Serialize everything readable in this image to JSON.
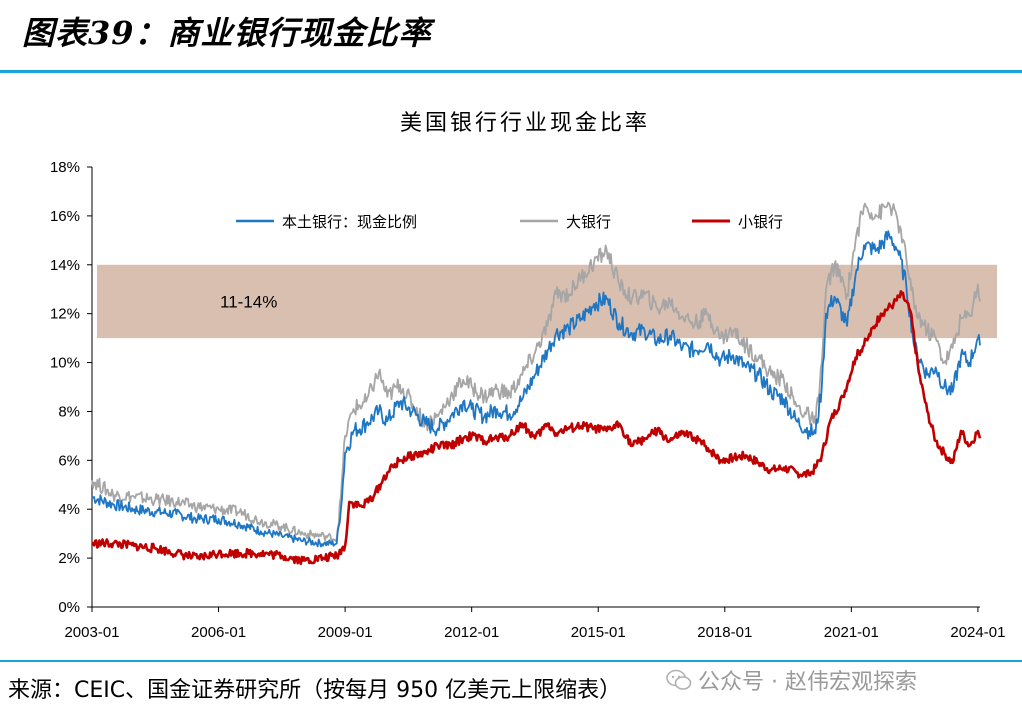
{
  "header": {
    "title": "图表39：商业银行现金比率"
  },
  "footer": {
    "source": "来源：CEIC、国金证券研究所（按每月 950 亿美元上限缩表）",
    "watermark": "公众号 · 赵伟宏观探索"
  },
  "colors": {
    "accent": "#19a3d6",
    "domestic": "#1f77c4",
    "large": "#a6a6a6",
    "small": "#c00000",
    "band": "#d9bfb0"
  },
  "chart_data": {
    "type": "line",
    "title": "美国银行行业现金比率",
    "band": {
      "from": 11,
      "to": 14,
      "label": "11-14%"
    },
    "ylim": [
      0,
      18
    ],
    "yticks": [
      "0%",
      "2%",
      "4%",
      "6%",
      "8%",
      "10%",
      "12%",
      "14%",
      "16%",
      "18%"
    ],
    "xlim": [
      2003.0,
      2024.05
    ],
    "xticks": [
      "2003-01",
      "2006-01",
      "2009-01",
      "2012-01",
      "2015-01",
      "2018-01",
      "2021-01",
      "2024-01"
    ],
    "grid": false,
    "legend": "top",
    "series": [
      {
        "name": "本土银行：现金比例",
        "color": "#1f77c4",
        "points": [
          [
            2003.0,
            4.5
          ],
          [
            2003.5,
            4.2
          ],
          [
            2004.0,
            4.0
          ],
          [
            2004.5,
            3.9
          ],
          [
            2005.0,
            3.8
          ],
          [
            2005.5,
            3.6
          ],
          [
            2006.0,
            3.6
          ],
          [
            2006.5,
            3.4
          ],
          [
            2007.0,
            3.1
          ],
          [
            2007.5,
            2.9
          ],
          [
            2008.0,
            2.7
          ],
          [
            2008.5,
            2.6
          ],
          [
            2008.8,
            2.6
          ],
          [
            2008.9,
            4.0
          ],
          [
            2009.0,
            6.3
          ],
          [
            2009.2,
            7.2
          ],
          [
            2009.5,
            7.5
          ],
          [
            2009.8,
            8.0
          ],
          [
            2010.0,
            7.6
          ],
          [
            2010.3,
            8.4
          ],
          [
            2010.6,
            8.0
          ],
          [
            2010.9,
            7.5
          ],
          [
            2011.2,
            7.3
          ],
          [
            2011.5,
            7.8
          ],
          [
            2011.8,
            8.4
          ],
          [
            2012.0,
            8.1
          ],
          [
            2012.3,
            7.8
          ],
          [
            2012.6,
            8.1
          ],
          [
            2012.9,
            7.9
          ],
          [
            2013.2,
            8.5
          ],
          [
            2013.5,
            9.5
          ],
          [
            2013.8,
            10.5
          ],
          [
            2014.0,
            11.2
          ],
          [
            2014.3,
            11.4
          ],
          [
            2014.6,
            11.8
          ],
          [
            2014.9,
            12.4
          ],
          [
            2015.2,
            12.6
          ],
          [
            2015.5,
            11.6
          ],
          [
            2015.8,
            11.2
          ],
          [
            2016.1,
            11.3
          ],
          [
            2016.4,
            10.9
          ],
          [
            2016.7,
            11.1
          ],
          [
            2017.0,
            10.6
          ],
          [
            2017.3,
            10.5
          ],
          [
            2017.6,
            10.8
          ],
          [
            2017.9,
            10.1
          ],
          [
            2018.2,
            10.3
          ],
          [
            2018.5,
            9.8
          ],
          [
            2018.8,
            9.5
          ],
          [
            2019.1,
            8.8
          ],
          [
            2019.4,
            8.5
          ],
          [
            2019.7,
            7.6
          ],
          [
            2020.0,
            7.2
          ],
          [
            2020.15,
            7.1
          ],
          [
            2020.3,
            9.0
          ],
          [
            2020.4,
            12.0
          ],
          [
            2020.6,
            12.7
          ],
          [
            2020.9,
            11.5
          ],
          [
            2021.1,
            13.6
          ],
          [
            2021.3,
            14.8
          ],
          [
            2021.6,
            14.6
          ],
          [
            2021.9,
            15.2
          ],
          [
            2022.1,
            14.6
          ],
          [
            2022.3,
            13.2
          ],
          [
            2022.5,
            10.6
          ],
          [
            2022.8,
            9.5
          ],
          [
            2023.0,
            9.8
          ],
          [
            2023.2,
            9.0
          ],
          [
            2023.4,
            8.8
          ],
          [
            2023.6,
            10.3
          ],
          [
            2023.8,
            10.0
          ],
          [
            2024.0,
            11.0
          ],
          [
            2024.05,
            10.7
          ]
        ]
      },
      {
        "name": "大银行",
        "color": "#a6a6a6",
        "points": [
          [
            2003.0,
            5.2
          ],
          [
            2003.5,
            4.6
          ],
          [
            2004.0,
            4.5
          ],
          [
            2004.5,
            4.4
          ],
          [
            2005.0,
            4.3
          ],
          [
            2005.5,
            4.1
          ],
          [
            2006.0,
            4.0
          ],
          [
            2006.5,
            3.9
          ],
          [
            2007.0,
            3.5
          ],
          [
            2007.5,
            3.3
          ],
          [
            2008.0,
            3.0
          ],
          [
            2008.5,
            2.9
          ],
          [
            2008.8,
            2.8
          ],
          [
            2008.9,
            4.5
          ],
          [
            2009.0,
            7.0
          ],
          [
            2009.2,
            8.1
          ],
          [
            2009.5,
            8.4
          ],
          [
            2009.8,
            9.6
          ],
          [
            2010.0,
            8.6
          ],
          [
            2010.3,
            9.1
          ],
          [
            2010.6,
            8.3
          ],
          [
            2010.9,
            7.5
          ],
          [
            2011.2,
            7.8
          ],
          [
            2011.5,
            8.6
          ],
          [
            2011.8,
            9.3
          ],
          [
            2012.0,
            9.0
          ],
          [
            2012.3,
            8.6
          ],
          [
            2012.6,
            8.9
          ],
          [
            2012.9,
            8.7
          ],
          [
            2013.2,
            9.5
          ],
          [
            2013.5,
            10.4
          ],
          [
            2013.8,
            11.5
          ],
          [
            2014.0,
            12.8
          ],
          [
            2014.3,
            12.8
          ],
          [
            2014.6,
            13.5
          ],
          [
            2014.9,
            14.1
          ],
          [
            2015.2,
            14.6
          ],
          [
            2015.5,
            13.2
          ],
          [
            2015.8,
            12.6
          ],
          [
            2016.1,
            12.8
          ],
          [
            2016.4,
            12.2
          ],
          [
            2016.7,
            12.5
          ],
          [
            2017.0,
            11.9
          ],
          [
            2017.3,
            11.6
          ],
          [
            2017.6,
            12.0
          ],
          [
            2017.9,
            11.0
          ],
          [
            2018.2,
            11.3
          ],
          [
            2018.5,
            10.7
          ],
          [
            2018.8,
            10.2
          ],
          [
            2019.1,
            9.5
          ],
          [
            2019.4,
            9.3
          ],
          [
            2019.7,
            8.2
          ],
          [
            2020.0,
            7.8
          ],
          [
            2020.15,
            7.5
          ],
          [
            2020.3,
            10.0
          ],
          [
            2020.4,
            13.0
          ],
          [
            2020.6,
            14.0
          ],
          [
            2020.9,
            12.8
          ],
          [
            2021.1,
            15.0
          ],
          [
            2021.3,
            16.4
          ],
          [
            2021.6,
            16.0
          ],
          [
            2021.9,
            16.5
          ],
          [
            2022.1,
            15.8
          ],
          [
            2022.3,
            14.3
          ],
          [
            2022.5,
            12.2
          ],
          [
            2022.8,
            11.3
          ],
          [
            2023.0,
            11.0
          ],
          [
            2023.2,
            10.0
          ],
          [
            2023.4,
            10.6
          ],
          [
            2023.6,
            11.8
          ],
          [
            2023.8,
            11.9
          ],
          [
            2024.0,
            13.2
          ],
          [
            2024.05,
            12.5
          ]
        ]
      },
      {
        "name": "小银行",
        "color": "#c00000",
        "points": [
          [
            2003.0,
            2.6
          ],
          [
            2003.5,
            2.6
          ],
          [
            2004.0,
            2.5
          ],
          [
            2004.5,
            2.4
          ],
          [
            2005.0,
            2.2
          ],
          [
            2005.5,
            2.0
          ],
          [
            2006.0,
            2.2
          ],
          [
            2006.5,
            2.2
          ],
          [
            2007.0,
            2.2
          ],
          [
            2007.5,
            2.1
          ],
          [
            2008.0,
            1.9
          ],
          [
            2008.5,
            2.0
          ],
          [
            2008.8,
            2.1
          ],
          [
            2009.0,
            2.5
          ],
          [
            2009.1,
            4.3
          ],
          [
            2009.4,
            4.1
          ],
          [
            2009.7,
            4.6
          ],
          [
            2010.0,
            5.5
          ],
          [
            2010.3,
            6.0
          ],
          [
            2010.6,
            6.2
          ],
          [
            2010.9,
            6.3
          ],
          [
            2011.2,
            6.6
          ],
          [
            2011.5,
            6.6
          ],
          [
            2011.8,
            6.9
          ],
          [
            2012.0,
            7.0
          ],
          [
            2012.3,
            6.8
          ],
          [
            2012.6,
            6.9
          ],
          [
            2012.9,
            7.0
          ],
          [
            2013.2,
            7.5
          ],
          [
            2013.5,
            6.9
          ],
          [
            2013.8,
            7.5
          ],
          [
            2014.0,
            7.1
          ],
          [
            2014.3,
            7.3
          ],
          [
            2014.6,
            7.4
          ],
          [
            2014.9,
            7.3
          ],
          [
            2015.2,
            7.2
          ],
          [
            2015.5,
            7.5
          ],
          [
            2015.8,
            6.6
          ],
          [
            2016.1,
            6.9
          ],
          [
            2016.4,
            7.2
          ],
          [
            2016.7,
            6.8
          ],
          [
            2017.0,
            7.1
          ],
          [
            2017.3,
            6.9
          ],
          [
            2017.6,
            6.5
          ],
          [
            2017.9,
            6.0
          ],
          [
            2018.2,
            6.1
          ],
          [
            2018.5,
            6.2
          ],
          [
            2018.8,
            5.9
          ],
          [
            2019.1,
            5.6
          ],
          [
            2019.4,
            5.7
          ],
          [
            2019.7,
            5.5
          ],
          [
            2020.0,
            5.4
          ],
          [
            2020.15,
            5.7
          ],
          [
            2020.3,
            6.2
          ],
          [
            2020.5,
            7.6
          ],
          [
            2020.8,
            8.6
          ],
          [
            2021.1,
            10.2
          ],
          [
            2021.4,
            11.0
          ],
          [
            2021.7,
            12.0
          ],
          [
            2022.0,
            12.4
          ],
          [
            2022.2,
            12.8
          ],
          [
            2022.4,
            12.1
          ],
          [
            2022.6,
            9.6
          ],
          [
            2022.8,
            8.0
          ],
          [
            2023.0,
            6.8
          ],
          [
            2023.2,
            6.3
          ],
          [
            2023.4,
            5.9
          ],
          [
            2023.6,
            7.2
          ],
          [
            2023.8,
            6.6
          ],
          [
            2024.0,
            7.2
          ],
          [
            2024.05,
            6.9
          ]
        ]
      }
    ]
  }
}
